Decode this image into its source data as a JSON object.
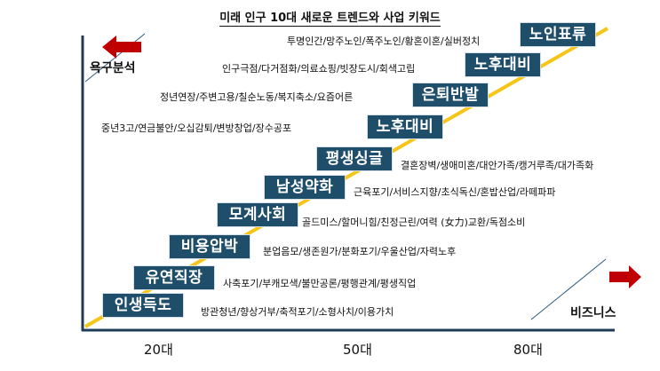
{
  "title": "미래 인구 10대 새로운 트렌드와 사업 키워드",
  "axis": {
    "y_label": "욕구분석",
    "x_label": "비즈니스",
    "age_ticks": [
      "20대",
      "50대",
      "80대"
    ]
  },
  "colors": {
    "box_fill": "#1f4e6b",
    "trend_line": "#f5c518",
    "arrow": "#c00000",
    "axis": "#1f3b57"
  },
  "trends": [
    {
      "label": "인생득도",
      "keywords": "방관청년/향상거부/축적포기/소형사치/이용가치"
    },
    {
      "label": "유연직장",
      "keywords": "사축포기/부캐모색/불만공론/평행관계/평생직업"
    },
    {
      "label": "비용압박",
      "keywords": "분업음모/생존원가/분화포기/우울산업/자력노후"
    },
    {
      "label": "모계사회",
      "keywords": "골드미스/할머니힘/친정근린/여력 (女力)교환/독점소비"
    },
    {
      "label": "남성약화",
      "keywords": "근육포기/서비스지향/초식독신/혼밥산업/라떼파파"
    },
    {
      "label": "평생싱글",
      "keywords": "결혼장벽/생애미혼/대안가족/캥거루족/대가족화"
    },
    {
      "label": "노후대비",
      "keywords": "중년3고/연금불안/오십감퇴/변방창업/장수공포"
    },
    {
      "label": "은퇴반발",
      "keywords": "정년연장/주변고용/칠순노동/복지축소/요즘어른"
    },
    {
      "label": "노후대비",
      "keywords": "인구극점/다거점화/의료쇼핑/빗장도시/회색고립"
    },
    {
      "label": "노인표류",
      "keywords": "투명인간/망주노인/폭주노인/황혼이혼/실버정치"
    }
  ]
}
